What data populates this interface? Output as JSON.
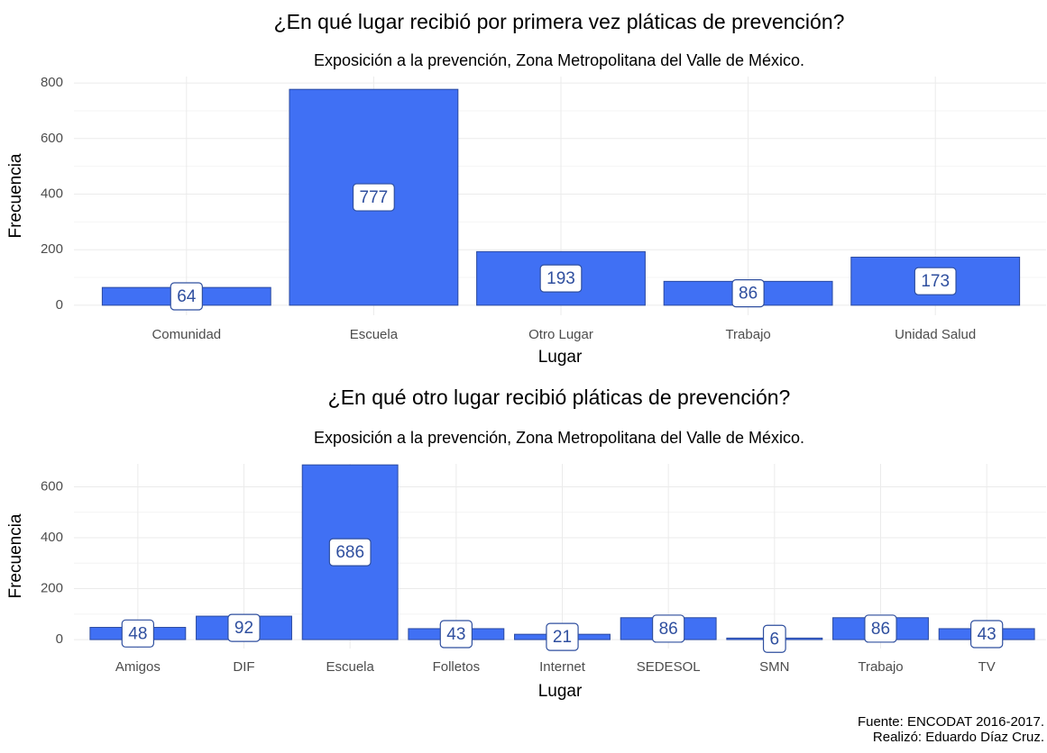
{
  "chart_data": [
    {
      "type": "bar",
      "title": "¿En qué lugar recibió por primera vez pláticas de prevención?",
      "subtitle": "Exposición a la prevención, Zona Metropolitana del Valle de México.",
      "x_label": "Lugar",
      "y_label": "Frecuencia",
      "categories": [
        "Comunidad",
        "Escuela",
        "Otro Lugar",
        "Trabajo",
        "Unidad Salud"
      ],
      "values": [
        64,
        777,
        193,
        86,
        173
      ],
      "color": "#4070f4",
      "ylim": [
        -36,
        823
      ],
      "yticks": [
        0,
        200,
        400,
        600,
        800
      ],
      "grid": true
    },
    {
      "type": "bar",
      "title": "¿En qué otro lugar recibió pláticas de prevención?",
      "subtitle": "Exposición a la prevención, Zona Metropolitana del Valle de México.",
      "x_label": "Lugar",
      "y_label": "Frecuencia",
      "categories": [
        "Amigos",
        "DIF",
        "Escuela",
        "Folletos",
        "Internet",
        "SEDESOL",
        "SMN",
        "Trabajo",
        "TV"
      ],
      "values": [
        48,
        92,
        686,
        43,
        21,
        86,
        6,
        86,
        43
      ],
      "color": "#4070f4",
      "ylim": [
        -35,
        690
      ],
      "yticks": [
        0,
        200,
        400,
        600
      ],
      "grid": true
    }
  ],
  "caption": [
    "Fuente: ENCODAT 2016-2017.",
    "Realizó: Eduardo Díaz Cruz."
  ]
}
